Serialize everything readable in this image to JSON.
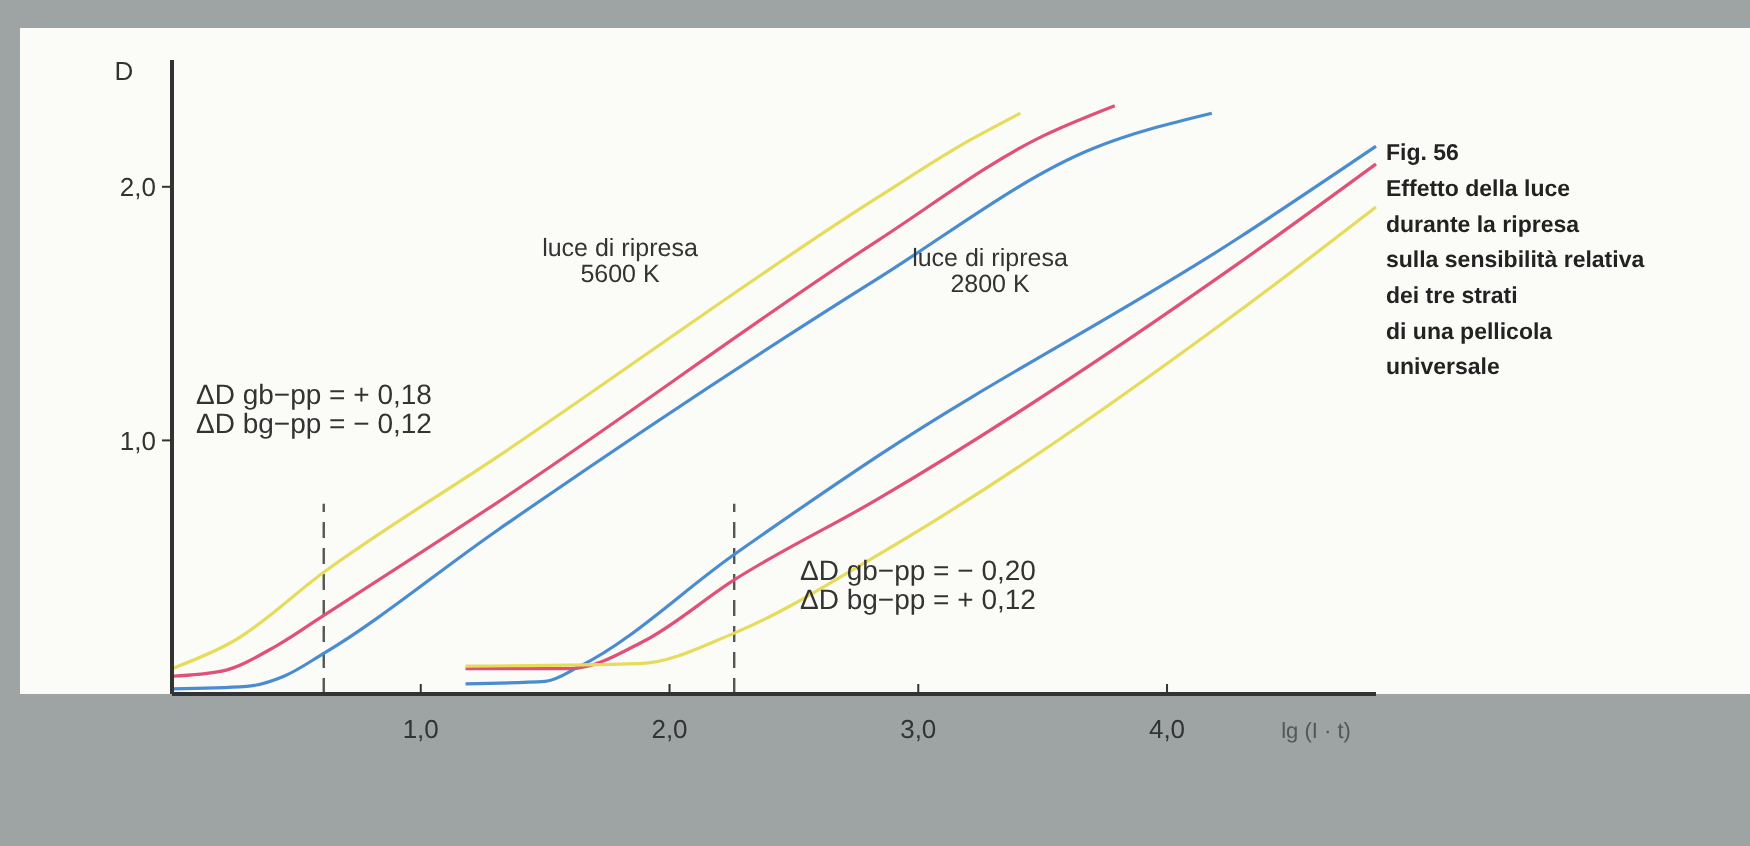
{
  "chart_data": {
    "type": "line",
    "title": "Fig. 56",
    "subtitle": "Effetto della luce\ndurante la ripresa\nsulla sensibilità relativa\ndei tre strati\ndi una pellicola\nuniversale",
    "xlabel": "lg (I · t)",
    "ylabel": "D",
    "xlim": [
      0,
      4.84
    ],
    "ylim": [
      0,
      2.5
    ],
    "xticks": [
      {
        "value": 1,
        "label": "1,0"
      },
      {
        "value": 2,
        "label": "2,0"
      },
      {
        "value": 3,
        "label": "3,0"
      },
      {
        "value": 4,
        "label": "4,0"
      }
    ],
    "yticks": [
      {
        "value": 1,
        "label": "1,0"
      },
      {
        "value": 2,
        "label": "2,0"
      }
    ],
    "grid": false,
    "marker": "none",
    "line_style": "solid",
    "series": [
      {
        "color": "#e6dc5a",
        "x": [
          0,
          0.25,
          0.61,
          1.3,
          2.84,
          3.2,
          3.41
        ],
        "values": [
          0.1,
          0.21,
          0.48,
          0.93,
          1.96,
          2.18,
          2.29
        ]
      },
      {
        "color": "#e05078",
        "x": [
          0,
          0.2,
          0.42,
          0.61,
          1.3,
          2.84,
          3.5,
          3.79
        ],
        "values": [
          0.07,
          0.09,
          0.19,
          0.31,
          0.75,
          1.79,
          2.2,
          2.32
        ]
      },
      {
        "color": "#4a8cd0",
        "x": [
          0,
          0.3,
          0.45,
          0.61,
          1.3,
          2.84,
          3.7,
          4.18
        ],
        "values": [
          0.02,
          0.03,
          0.07,
          0.16,
          0.64,
          1.64,
          2.15,
          2.29
        ]
      },
      {
        "color": "#4a8cd0",
        "x": [
          1.18,
          1.5,
          1.64,
          2.26,
          2.84,
          4.29,
          4.84
        ],
        "values": [
          0.04,
          0.05,
          0.11,
          0.55,
          0.94,
          1.8,
          2.16
        ]
      },
      {
        "color": "#e05078",
        "x": [
          1.18,
          1.6,
          1.9,
          2.26,
          2.84,
          4.29,
          4.84
        ],
        "values": [
          0.1,
          0.1,
          0.21,
          0.45,
          0.77,
          1.7,
          2.09
        ]
      },
      {
        "color": "#e6dc5a",
        "x": [
          1.18,
          1.88,
          2.26,
          2.84,
          4.29,
          4.84
        ],
        "values": [
          0.11,
          0.12,
          0.24,
          0.55,
          1.51,
          1.92
        ]
      }
    ],
    "ref_lines": [
      {
        "axis": "x",
        "value": 0.61,
        "line_style": "dashed",
        "color": "#555555"
      },
      {
        "axis": "x",
        "value": 2.26,
        "line_style": "dashed",
        "color": "#555555"
      }
    ],
    "annotations": [
      "luce di ripresa\n5600 K",
      "luce di ripresa\n2800 K",
      "ΔD gb−pp = + 0,18\nΔD bg−pp = − 0,12",
      "ΔD gb−pp = − 0,20\nΔD bg−pp = + 0,12"
    ]
  }
}
